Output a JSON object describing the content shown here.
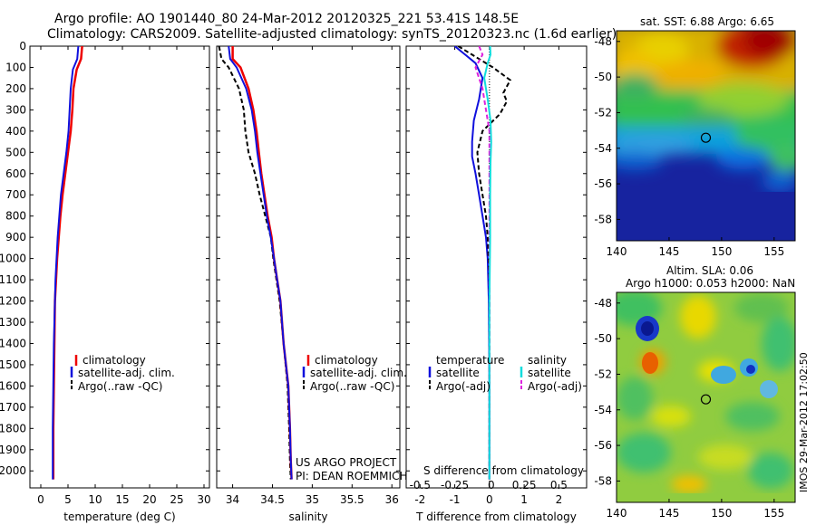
{
  "header": {
    "title_line1": "Argo profile: AO 1901440_80 24-Mar-2012 20120325_221 53.41S 148.5E",
    "title_line2": "Climatology: CARS2009. Satellite-adjusted climatology: synTS_20120323.nc (1.6d earlier)"
  },
  "project": {
    "line1": "US ARGO PROJECT",
    "line2": "PI: DEAN ROEMMICH"
  },
  "watermark": "IMOS 29-Mar-2012 17:02:50",
  "colors": {
    "climatology": "#ee0000",
    "satellite": "#1010dd",
    "argo": "#000000",
    "sat_salinity": "#11dddd",
    "argo_salinity": "#dd22dd"
  },
  "chart_data": [
    {
      "type": "line",
      "xlabel": "temperature (deg C)",
      "xlim": [
        -2,
        31
      ],
      "ylim": [
        0,
        2080
      ],
      "xticks": [
        0,
        5,
        10,
        15,
        20,
        25,
        30
      ],
      "yticks": [
        0,
        100,
        200,
        300,
        400,
        500,
        600,
        700,
        800,
        900,
        1000,
        1100,
        1200,
        1300,
        1400,
        1500,
        1600,
        1700,
        1800,
        1900,
        2000
      ],
      "legend": [
        "climatology",
        "satellite-adj. clim.",
        "Argo(..raw -QC)"
      ],
      "series": [
        {
          "name": "climatology",
          "x": [
            7.6,
            7.4,
            6.6,
            6.0,
            5.8,
            5.5,
            5.0,
            4.5,
            4.0,
            3.6,
            3.3,
            3.0,
            2.8,
            2.6,
            2.5,
            2.4,
            2.3,
            2.3
          ],
          "y": [
            0,
            60,
            110,
            200,
            300,
            400,
            500,
            600,
            700,
            800,
            900,
            1000,
            1100,
            1200,
            1400,
            1600,
            1800,
            2040
          ]
        },
        {
          "name": "satellite-adj. clim.",
          "x": [
            6.9,
            6.7,
            5.9,
            5.5,
            5.3,
            5.1,
            4.7,
            4.2,
            3.7,
            3.4,
            3.1,
            2.9,
            2.7,
            2.6,
            2.4,
            2.3,
            2.2,
            2.2
          ],
          "y": [
            0,
            60,
            110,
            200,
            300,
            400,
            500,
            600,
            700,
            800,
            900,
            1000,
            1100,
            1200,
            1400,
            1600,
            1800,
            2040
          ]
        }
      ]
    },
    {
      "type": "line",
      "xlabel": "salinity",
      "xlim": [
        33.8,
        36.1
      ],
      "ylim": [
        0,
        2080
      ],
      "xticks": [
        34,
        34.5,
        35,
        35.5,
        36
      ],
      "legend": [
        "climatology",
        "satellite-adj. clim.",
        "Argo(..raw -QC)"
      ],
      "series": [
        {
          "name": "climatology",
          "x": [
            34.0,
            34.0,
            34.1,
            34.2,
            34.26,
            34.3,
            34.33,
            34.36,
            34.4,
            34.44,
            34.49,
            34.52,
            34.56,
            34.6,
            34.64,
            34.7,
            34.72,
            34.73,
            34.74
          ],
          "y": [
            0,
            60,
            100,
            200,
            300,
            400,
            500,
            600,
            700,
            800,
            900,
            1000,
            1100,
            1200,
            1400,
            1600,
            1800,
            1950,
            2040
          ]
        },
        {
          "name": "satellite-adj. clim.",
          "x": [
            33.95,
            33.97,
            34.05,
            34.17,
            34.24,
            34.28,
            34.31,
            34.35,
            34.39,
            34.43,
            34.48,
            34.52,
            34.56,
            34.6,
            34.64,
            34.7,
            34.72,
            34.73,
            34.74
          ],
          "y": [
            0,
            60,
            100,
            200,
            300,
            400,
            500,
            600,
            700,
            800,
            900,
            1000,
            1100,
            1200,
            1400,
            1600,
            1800,
            1950,
            2040
          ]
        },
        {
          "name": "Argo(..raw -QC)",
          "dashed": true,
          "x": [
            33.83,
            33.86,
            33.95,
            34.08,
            34.14,
            34.16,
            34.2,
            34.28,
            34.34,
            34.41,
            34.48,
            34.51,
            34.55,
            34.59,
            34.64,
            34.69,
            34.71,
            34.72,
            34.73
          ],
          "y": [
            0,
            60,
            100,
            200,
            300,
            400,
            500,
            600,
            700,
            800,
            900,
            1000,
            1100,
            1200,
            1400,
            1600,
            1800,
            1950,
            2040
          ]
        }
      ]
    },
    {
      "type": "line",
      "xlabel_s": "S difference from climatology",
      "xlabel_t": "T difference from climatology",
      "xlim": [
        -2.4,
        2.8
      ],
      "ylim": [
        0,
        2080
      ],
      "xticks_t": [
        -2,
        -1,
        0,
        1,
        2
      ],
      "xticks_s": [
        -0.5,
        -0.25,
        0,
        0.25,
        0.5
      ],
      "legend_left_title": "temperature",
      "legend_right_title": "salinity",
      "legend_left": [
        "satellite",
        "Argo(-adj)"
      ],
      "legend_right": [
        "satellite",
        "Argo(-adj)"
      ],
      "series": [
        {
          "name": "temperature satellite",
          "x": [
            -1.0,
            -0.7,
            -0.4,
            -0.2,
            -0.3,
            -0.45,
            -0.5,
            -0.5,
            -0.4,
            -0.3,
            -0.2,
            -0.1,
            -0.05,
            -0.02,
            0,
            0
          ],
          "y": [
            0,
            40,
            80,
            150,
            250,
            350,
            450,
            520,
            600,
            700,
            800,
            900,
            1000,
            1200,
            1600,
            2040
          ]
        },
        {
          "name": "temperature Argo(-adj)",
          "dashed": true,
          "x": [
            -0.9,
            -0.5,
            0.1,
            0.6,
            0.4,
            0.5,
            0.3,
            -0.2,
            -0.35,
            -0.3,
            -0.2,
            -0.1,
            -0.05,
            0,
            0
          ],
          "y": [
            0,
            40,
            100,
            160,
            220,
            260,
            320,
            400,
            500,
            600,
            700,
            800,
            900,
            1100,
            2040
          ]
        },
        {
          "name": "salinity satellite",
          "x": [
            0.02,
            0.03,
            -0.05,
            -0.15,
            -0.05,
            0.03,
            0.05,
            0.03,
            0.02,
            0.02,
            0,
            0
          ],
          "y": [
            0,
            40,
            80,
            150,
            250,
            350,
            450,
            550,
            700,
            900,
            1200,
            2040
          ]
        },
        {
          "name": "salinity Argo(-adj)",
          "dashed": true,
          "x": [
            -0.3,
            -0.2,
            -0.4,
            -0.2,
            -0.1,
            0,
            0
          ],
          "y": [
            0,
            40,
            100,
            200,
            300,
            400,
            2040
          ]
        }
      ]
    },
    {
      "type": "heatmap",
      "title": "sat. SST: 6.88 Argo: 6.65",
      "xlim": [
        140,
        157
      ],
      "ylim": [
        -59.2,
        -47.4
      ],
      "xticks": [
        140,
        145,
        150,
        155
      ],
      "yticks": [
        -48,
        -50,
        -52,
        -54,
        -56,
        -58
      ],
      "marker": {
        "lon": 148.5,
        "lat": -53.41
      }
    },
    {
      "type": "heatmap",
      "title_line1": "Altim. SLA: 0.06",
      "title_line2": "Argo h1000: 0.053 h2000: NaN",
      "xlim": [
        140,
        157
      ],
      "ylim": [
        -59.2,
        -47.4
      ],
      "xticks": [
        140,
        145,
        150,
        155
      ],
      "yticks": [
        -48,
        -50,
        -52,
        -54,
        -56,
        -58
      ],
      "marker": {
        "lon": 148.5,
        "lat": -53.41
      }
    }
  ]
}
